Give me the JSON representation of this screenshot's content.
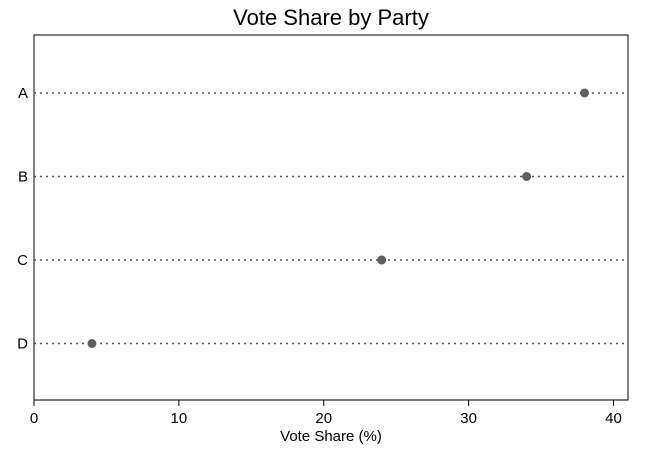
{
  "chart_data": {
    "type": "scatter",
    "title": "Vote Share by Party",
    "xlabel": "Vote Share (%)",
    "ylabel": "",
    "categories": [
      "A",
      "B",
      "C",
      "D"
    ],
    "values": [
      38,
      34,
      24,
      4
    ],
    "xlim": [
      0,
      41
    ],
    "xticks": [
      0,
      10,
      20,
      30,
      40
    ],
    "grid": false,
    "legend": "none",
    "marker_color": "#5f5f5f"
  }
}
